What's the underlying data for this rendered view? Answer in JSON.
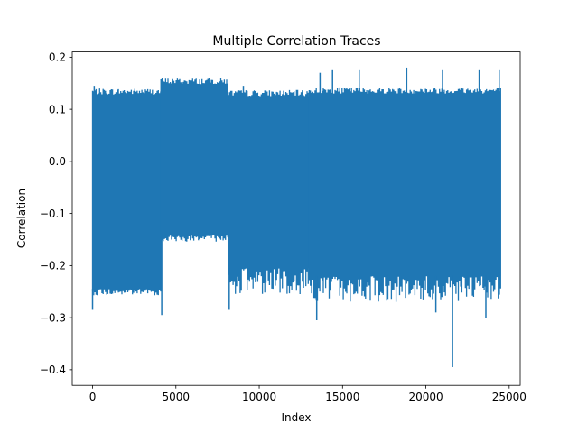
{
  "chart_data": {
    "type": "line",
    "title": "Multiple Correlation Traces",
    "xlabel": "Index",
    "ylabel": "Correlation",
    "xlim": [
      -1220,
      25660
    ],
    "ylim": [
      -0.43,
      0.21
    ],
    "x_ticks": [
      0,
      5000,
      10000,
      15000,
      20000,
      25000
    ],
    "x_tick_labels": [
      "0",
      "5000",
      "10000",
      "15000",
      "20000",
      "25000"
    ],
    "y_ticks": [
      -0.4,
      -0.3,
      -0.2,
      -0.1,
      0.0,
      0.1,
      0.2
    ],
    "y_tick_labels": [
      "−0.4",
      "−0.3",
      "−0.2",
      "−0.1",
      "0.0",
      "0.1",
      "0.2"
    ],
    "grid": false,
    "legend": "none",
    "colors": {
      "series": "#1f77b4",
      "axes": "#000000",
      "background": "#ffffff"
    },
    "series": [
      {
        "x_range": [
          0,
          24500
        ],
        "segments": [
          {
            "x": [
              0,
              4100
            ],
            "upper": 0.128,
            "lower": -0.245
          },
          {
            "x": [
              4100,
              8150
            ],
            "upper": 0.148,
            "lower": -0.142
          },
          {
            "x": [
              8150,
              13000
            ],
            "upper": 0.125,
            "lower": -0.205
          },
          {
            "x": [
              13000,
              24500
            ],
            "upper": 0.13,
            "lower": -0.22
          }
        ],
        "extrema": [
          {
            "x": 0,
            "y": -0.285
          },
          {
            "x": 100,
            "y": 0.145
          },
          {
            "x": 4150,
            "y": -0.295
          },
          {
            "x": 8200,
            "y": -0.285
          },
          {
            "x": 9050,
            "y": 0.145
          },
          {
            "x": 13450,
            "y": -0.305
          },
          {
            "x": 13650,
            "y": 0.17
          },
          {
            "x": 14400,
            "y": 0.175
          },
          {
            "x": 16000,
            "y": 0.175
          },
          {
            "x": 18850,
            "y": 0.18
          },
          {
            "x": 20600,
            "y": -0.29
          },
          {
            "x": 21000,
            "y": 0.175
          },
          {
            "x": 21600,
            "y": -0.395
          },
          {
            "x": 23200,
            "y": 0.175
          },
          {
            "x": 23600,
            "y": -0.3
          },
          {
            "x": 24400,
            "y": 0.175
          }
        ]
      }
    ]
  }
}
